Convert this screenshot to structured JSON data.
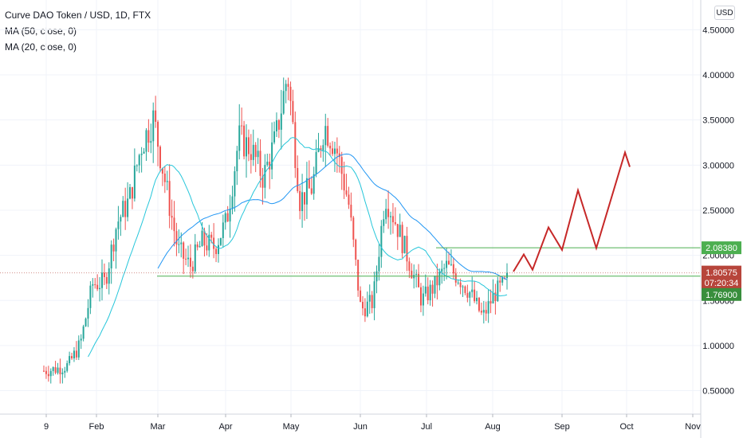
{
  "legend": {
    "title": "Curve DAO Token / USD, 1D, FTX",
    "ma50": "MA (50, close, 0)",
    "ma20": "MA (20, close, 0)"
  },
  "currency_button": "USD",
  "colors": {
    "up": "#26a69a",
    "down": "#ef5350",
    "ma50": "#2196f3",
    "ma20": "#26c6da",
    "level": "#4caf50",
    "projection": "#c62828",
    "price_label": "#b7453b"
  },
  "price_labels": {
    "upper_level": "2.08380",
    "current_price": "1.80575",
    "countdown": "07:20:34",
    "lower_level": "1.76900"
  },
  "chart_data": {
    "type": "candlestick",
    "title": "Curve DAO Token / USD, 1D, FTX",
    "x_labels": [
      "9",
      "Feb",
      "Mar",
      "Apr",
      "May",
      "Jun",
      "Jul",
      "Aug",
      "Sep",
      "Oct",
      "Nov"
    ],
    "y_ticks": [
      "4.50000",
      "4.00000",
      "3.50000",
      "3.00000",
      "2.50000",
      "2.00000",
      "1.50000",
      "1.00000",
      "0.50000"
    ],
    "y_tick_values": [
      4.5,
      4.0,
      3.5,
      3.0,
      2.5,
      2.0,
      1.5,
      1.0,
      0.5
    ],
    "ylim": [
      0.24,
      4.83
    ],
    "levels": [
      2.0838,
      1.769
    ],
    "current_price": 1.80575,
    "series": [
      {
        "name": "MA (50, close, 0)"
      },
      {
        "name": "MA (20, close, 0)"
      }
    ],
    "price_path": [
      [
        0.72,
        0.62
      ],
      [
        0.74,
        0.63
      ],
      [
        0.78,
        0.66
      ],
      [
        1.02,
        1.08
      ],
      [
        1.68,
        1.46
      ],
      [
        1.7,
        2.28
      ],
      [
        2.36,
        2.58
      ],
      [
        2.61,
        3.33
      ],
      [
        3.22,
        3.35
      ],
      [
        3.52,
        3.28
      ],
      [
        2.78,
        2.18
      ],
      [
        2.06,
        1.86
      ],
      [
        1.88,
        2.35
      ],
      [
        2.15,
        1.99
      ],
      [
        2.09,
        2.19
      ],
      [
        2.38,
        2.44
      ],
      [
        3.3,
        3.42
      ],
      [
        3.18,
        3.07
      ],
      [
        2.86,
        2.96
      ],
      [
        3.28,
        3.43
      ],
      [
        4.02,
        3.33
      ],
      [
        2.62,
        2.95
      ],
      [
        2.75,
        3.24
      ],
      [
        3.45,
        3.62
      ],
      [
        3.18,
        3.27
      ],
      [
        2.58,
        1.97
      ],
      [
        1.4,
        1.42
      ],
      [
        1.48,
        1.34
      ],
      [
        2.67,
        2.44
      ],
      [
        2.32,
        2.15
      ],
      [
        1.92,
        1.72
      ],
      [
        1.5,
        1.34
      ],
      [
        1.65,
        1.81
      ],
      [
        1.88,
        1.63
      ],
      [
        1.76,
        1.68
      ],
      [
        1.58,
        1.43
      ],
      [
        1.31,
        1.44
      ],
      [
        1.58,
        1.52
      ],
      [
        1.7,
        1.81
      ]
    ],
    "projection_path": [
      1.82,
      2.01,
      1.84,
      2.31,
      2.06,
      2.72,
      2.08,
      3.14,
      2.98
    ]
  }
}
